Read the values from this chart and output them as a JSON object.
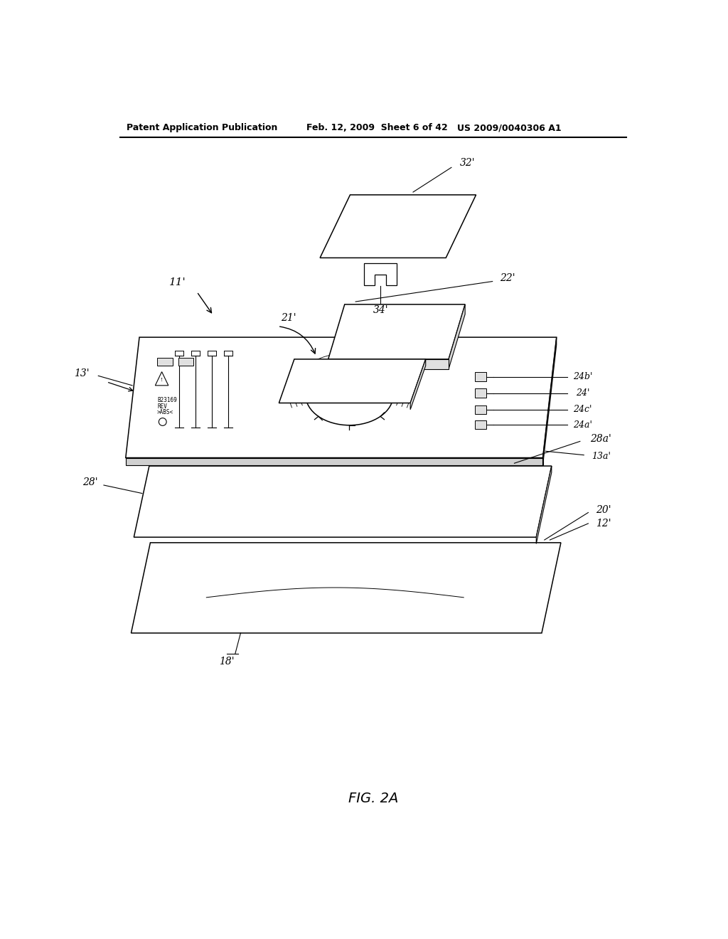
{
  "background_color": "#ffffff",
  "header_left": "Patent Application Publication",
  "header_center": "Feb. 12, 2009  Sheet 6 of 42",
  "header_right": "US 2009/0040306 A1",
  "figure_label": "FIG. 2A",
  "lw": 1.1
}
